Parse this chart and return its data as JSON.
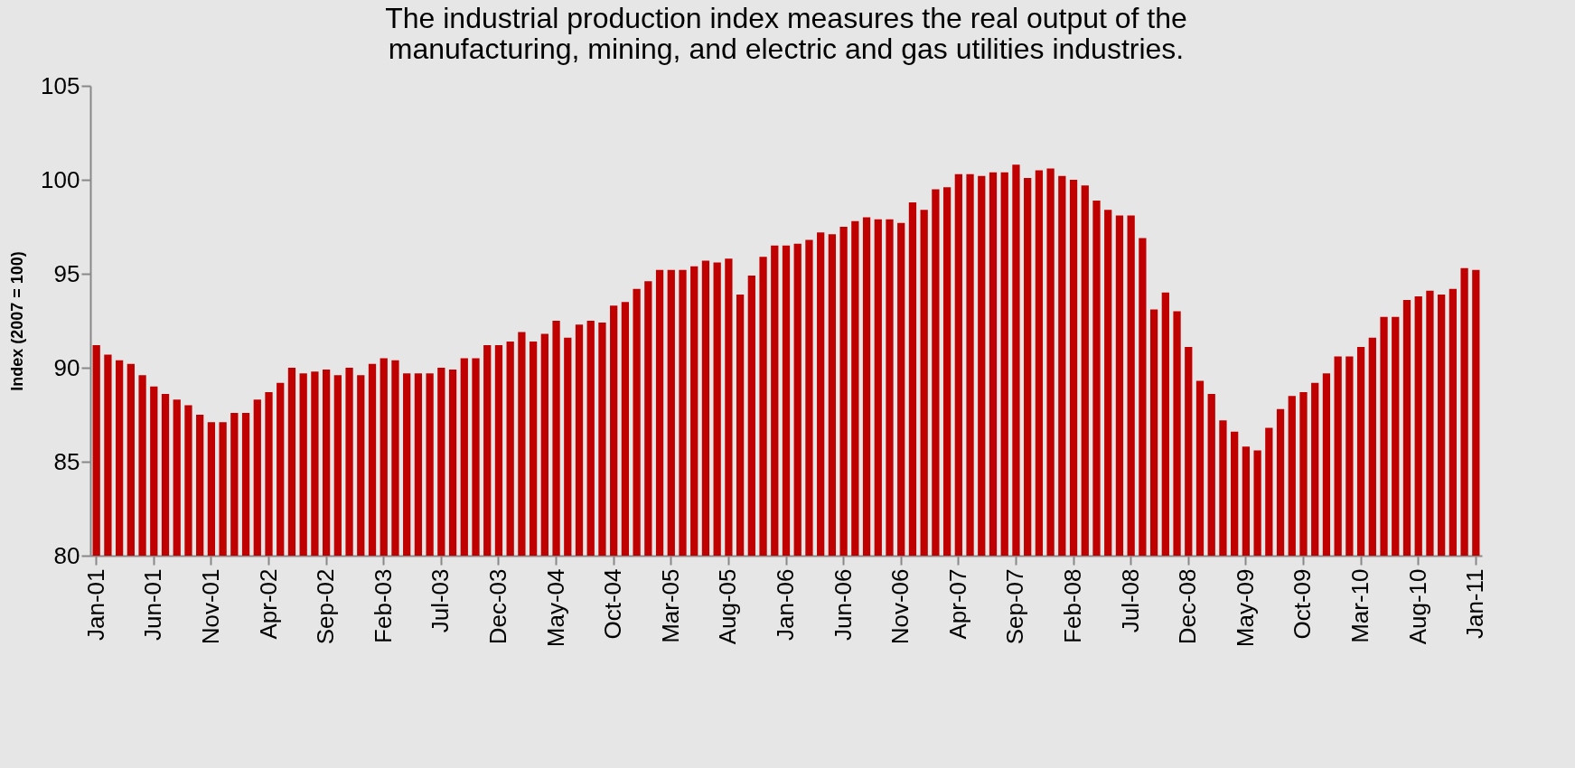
{
  "chart_data": {
    "type": "bar",
    "title": "The industrial production index measures the real output of the manufacturing, mining, and electric and gas utilities industries.",
    "ylabel": "Index (2007 = 100)",
    "color": "#c00000",
    "ylim": [
      80,
      105
    ],
    "yticks": [
      80,
      85,
      90,
      95,
      100,
      105
    ],
    "grid": false,
    "categories": [
      "Jan-01",
      null,
      null,
      null,
      null,
      "Jun-01",
      null,
      null,
      null,
      null,
      "Nov-01",
      null,
      null,
      null,
      null,
      "Apr-02",
      null,
      null,
      null,
      null,
      "Sep-02",
      null,
      null,
      null,
      null,
      "Feb-03",
      null,
      null,
      null,
      null,
      "Jul-03",
      null,
      null,
      null,
      null,
      "Dec-03",
      null,
      null,
      null,
      null,
      "May-04",
      null,
      null,
      null,
      null,
      "Oct-04",
      null,
      null,
      null,
      null,
      "Mar-05",
      null,
      null,
      null,
      null,
      "Aug-05",
      null,
      null,
      null,
      null,
      "Jan-06",
      null,
      null,
      null,
      null,
      "Jun-06",
      null,
      null,
      null,
      null,
      "Nov-06",
      null,
      null,
      null,
      null,
      "Apr-07",
      null,
      null,
      null,
      null,
      "Sep-07",
      null,
      null,
      null,
      null,
      "Feb-08",
      null,
      null,
      null,
      null,
      "Jul-08",
      null,
      null,
      null,
      null,
      "Dec-08",
      null,
      null,
      null,
      null,
      "May-09",
      null,
      null,
      null,
      null,
      "Oct-09",
      null,
      null,
      null,
      null,
      "Mar-10",
      null,
      null,
      null,
      null,
      "Aug-10",
      null,
      null,
      null,
      null,
      "Jan-11"
    ],
    "values": [
      91.2,
      90.7,
      90.4,
      90.2,
      89.6,
      89.0,
      88.6,
      88.3,
      88.0,
      87.5,
      87.1,
      87.1,
      87.6,
      87.6,
      88.3,
      88.7,
      89.2,
      90.0,
      89.7,
      89.8,
      89.9,
      89.6,
      90.0,
      89.6,
      90.2,
      90.5,
      90.4,
      89.7,
      89.7,
      89.7,
      90.0,
      89.9,
      90.5,
      90.5,
      91.2,
      91.2,
      91.4,
      91.9,
      91.4,
      91.8,
      92.5,
      91.6,
      92.3,
      92.5,
      92.4,
      93.3,
      93.5,
      94.2,
      94.6,
      95.2,
      95.2,
      95.2,
      95.4,
      95.7,
      95.6,
      95.8,
      93.9,
      94.9,
      95.9,
      96.5,
      96.5,
      96.6,
      96.8,
      97.2,
      97.1,
      97.5,
      97.8,
      98.0,
      97.9,
      97.9,
      97.7,
      98.8,
      98.4,
      99.5,
      99.6,
      100.3,
      100.3,
      100.2,
      100.4,
      100.4,
      100.8,
      100.1,
      100.5,
      100.6,
      100.2,
      100.0,
      99.7,
      98.9,
      98.4,
      98.1,
      98.1,
      96.9,
      93.1,
      94.0,
      93.0,
      91.1,
      89.3,
      88.6,
      87.2,
      86.6,
      85.8,
      85.6,
      86.8,
      87.8,
      88.5,
      88.7,
      89.2,
      89.7,
      90.6,
      90.6,
      91.1,
      91.6,
      92.7,
      92.7,
      93.6,
      93.8,
      94.1,
      93.9,
      94.2,
      95.3,
      95.2
    ]
  }
}
